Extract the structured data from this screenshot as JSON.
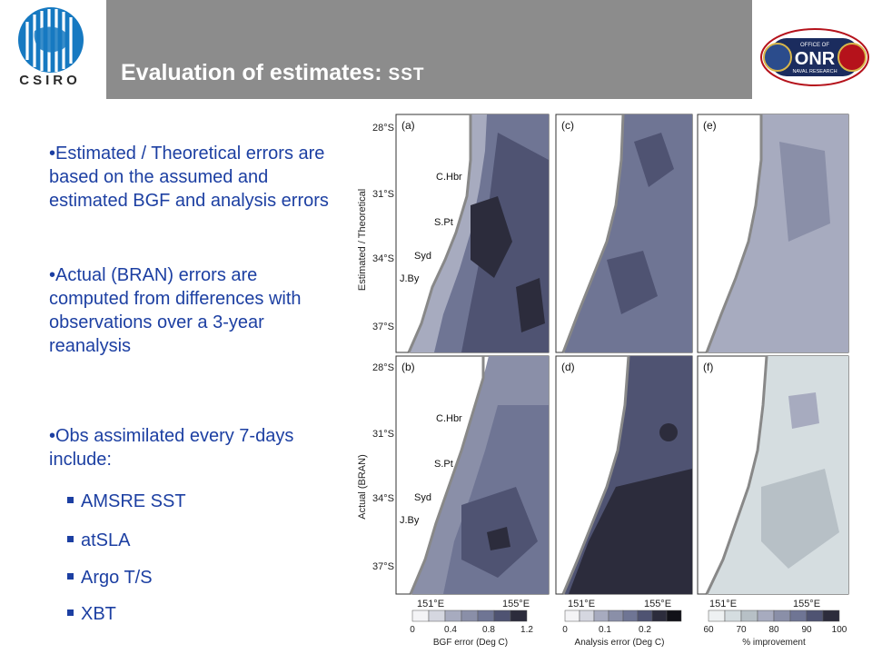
{
  "header": {
    "title_main": "Evaluation of estimates:",
    "title_sub": "SST",
    "left_logo": {
      "text": "CSIRO",
      "icon": "csiro-globe-logo"
    },
    "right_logo": {
      "text_top": "OFFICE OF",
      "text_main": "ONR",
      "text_bottom": "NAVAL RESEARCH",
      "icon": "onr-emblem-logo"
    }
  },
  "body": {
    "bullets": [
      "•Estimated / Theoretical errors are based on the assumed and estimated BGF and analysis errors",
      "•Actual (BRAN) errors are computed from differences with observations over a 3-year reanalysis",
      "•Obs assimilated every 7-days include:"
    ],
    "sub_items": [
      "AMSRE SST",
      "atSLA",
      "Argo T/S",
      "XBT"
    ]
  },
  "figure": {
    "row_labels": [
      "Estimated / Theoretical",
      "Actual (BRAN)"
    ],
    "panel_labels": [
      "(a)",
      "(c)",
      "(e)",
      "(b)",
      "(d)",
      "(f)"
    ],
    "lat_ticks": [
      "28°S",
      "31°S",
      "34°S",
      "37°S"
    ],
    "lon_ticks": [
      "151°E",
      "155°E"
    ],
    "places": [
      "C.Hbr",
      "S.Pt",
      "Syd",
      "J.By"
    ],
    "colorbars": [
      {
        "ticks": [
          "0",
          "0.4",
          "0.8",
          "1.2"
        ],
        "label": "BGF error (Deg C)"
      },
      {
        "ticks": [
          "0",
          "0.1",
          "0.2"
        ],
        "label": "Analysis error (Deg C)"
      },
      {
        "ticks": [
          "60",
          "70",
          "80",
          "90",
          "100"
        ],
        "label": "% improvement"
      }
    ],
    "colors": {
      "dark": "#2c2c3c",
      "mid": "#5d6280",
      "light": "#a7abbf",
      "pale": "#d5dde0"
    }
  }
}
